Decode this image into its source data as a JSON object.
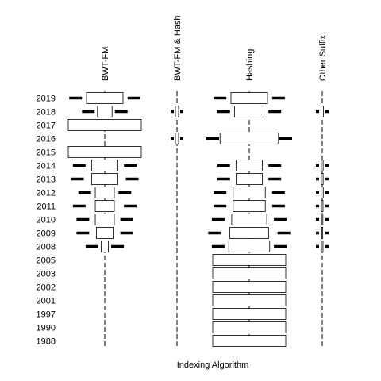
{
  "chart_data": {
    "type": "mosaic",
    "xlabel": "Indexing Algorithm",
    "columns": [
      "BWT-FM",
      "BWT-FM & Hash",
      "Hashing",
      "Other Suffix"
    ],
    "rows": [
      "2019",
      "2018",
      "2017",
      "2016",
      "2015",
      "2014",
      "2013",
      "2012",
      "2011",
      "2010",
      "2009",
      "2008",
      "2005",
      "2003",
      "2002",
      "2001",
      "1997",
      "1990",
      "1988"
    ],
    "cells": {
      "2019": [
        0.5,
        0.0,
        0.5,
        0.0
      ],
      "2018": [
        0.2,
        0.2,
        0.4,
        0.2
      ],
      "2017": [
        1.0,
        0.0,
        0.0,
        0.0
      ],
      "2016": [
        0.0,
        0.2,
        0.8,
        0.0
      ],
      "2015": [
        1.0,
        0.0,
        0.0,
        0.0
      ],
      "2014": [
        0.36,
        0.0,
        0.36,
        0.14
      ],
      "2013": [
        0.36,
        0.0,
        0.36,
        0.14
      ],
      "2012": [
        0.26,
        0.0,
        0.44,
        0.16
      ],
      "2011": [
        0.26,
        0.0,
        0.44,
        0.12
      ],
      "2010": [
        0.26,
        0.0,
        0.48,
        0.1
      ],
      "2009": [
        0.23,
        0.0,
        0.53,
        0.08
      ],
      "2008": [
        0.1,
        0.0,
        0.56,
        0.12
      ],
      "2005": [
        0.0,
        0.0,
        1.0,
        0.0
      ],
      "2003": [
        0.0,
        0.0,
        1.0,
        0.0
      ],
      "2002": [
        0.0,
        0.0,
        1.0,
        0.0
      ],
      "2001": [
        0.0,
        0.0,
        1.0,
        0.0
      ],
      "1997": [
        0.0,
        0.0,
        1.0,
        0.0
      ],
      "1990": [
        0.0,
        0.0,
        1.0,
        0.0
      ],
      "1988": [
        0.0,
        0.0,
        1.0,
        0.0
      ]
    },
    "residual_ticks": {
      "2019": [
        0.8,
        0,
        0.8,
        0
      ],
      "2018": [
        0.45,
        0.45,
        0.7,
        0.45
      ],
      "2016": [
        0,
        0.45,
        1.0,
        0
      ],
      "2014": [
        0.7,
        0,
        0.7,
        0.4
      ],
      "2013": [
        0.75,
        0,
        0.7,
        0.4
      ],
      "2012": [
        0.55,
        0,
        0.8,
        0.45
      ],
      "2011": [
        0.7,
        0,
        0.8,
        0.4
      ],
      "2010": [
        0.6,
        0,
        0.85,
        0.4
      ],
      "2009": [
        0.6,
        0,
        0.95,
        0.3
      ],
      "2008": [
        0.35,
        0,
        0.85,
        0.35
      ]
    }
  }
}
